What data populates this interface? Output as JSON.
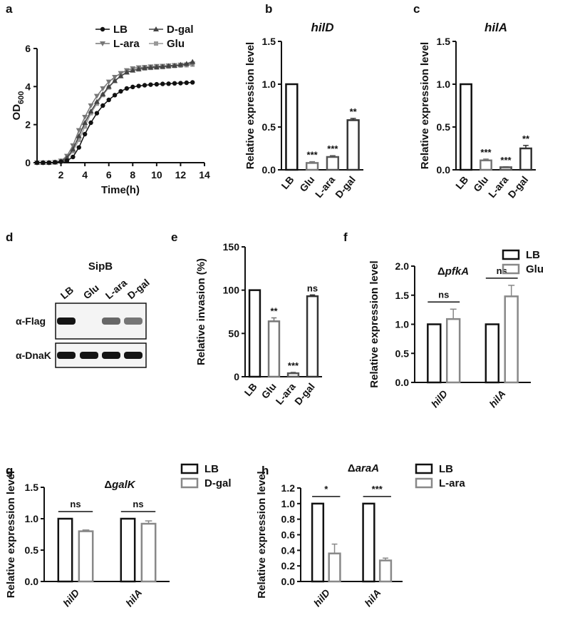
{
  "chart_data": [
    {
      "panel": "a",
      "type": "line",
      "xlabel": "Time(h)",
      "ylabel": "OD",
      "ylabel_sub": "600",
      "xlim": [
        0,
        14
      ],
      "ylim": [
        0,
        6
      ],
      "xticks": [
        2,
        4,
        6,
        8,
        10,
        12,
        14
      ],
      "yticks": [
        0,
        2,
        4,
        6
      ],
      "legend": [
        "LB",
        "D-gal",
        "L-ara",
        "Glu"
      ],
      "legend_position": "top",
      "series": [
        {
          "name": "LB",
          "marker": "circle",
          "color": "#111111",
          "x": [
            0,
            0.5,
            1,
            1.5,
            2,
            2.5,
            3,
            3.5,
            4,
            4.5,
            5,
            5.5,
            6,
            6.5,
            7,
            7.5,
            8,
            8.5,
            9,
            9.5,
            10,
            10.5,
            11,
            11.5,
            12,
            12.5,
            13
          ],
          "y": [
            0,
            0,
            0,
            0.02,
            0.05,
            0.1,
            0.3,
            0.8,
            1.5,
            2.1,
            2.6,
            3.0,
            3.3,
            3.55,
            3.75,
            3.9,
            3.98,
            4.03,
            4.07,
            4.1,
            4.12,
            4.14,
            4.15,
            4.17,
            4.18,
            4.2,
            4.22
          ]
        },
        {
          "name": "D-gal",
          "marker": "triangle",
          "color": "#444444",
          "x": [
            0,
            0.5,
            1,
            1.5,
            2,
            2.5,
            3,
            3.5,
            4,
            4.5,
            5,
            5.5,
            6,
            6.5,
            7,
            7.5,
            8,
            8.5,
            9,
            9.5,
            10,
            10.5,
            11,
            11.5,
            12,
            12.5,
            13
          ],
          "y": [
            0,
            0,
            0,
            0.02,
            0.08,
            0.25,
            0.7,
            1.4,
            2.1,
            2.7,
            3.2,
            3.6,
            4.0,
            4.3,
            4.55,
            4.75,
            4.85,
            4.92,
            4.98,
            5.0,
            5.02,
            5.05,
            5.08,
            5.1,
            5.15,
            5.2,
            5.3
          ]
        },
        {
          "name": "L-ara",
          "marker": "triangle-down",
          "color": "#777777",
          "x": [
            0,
            0.5,
            1,
            1.5,
            2,
            2.5,
            3,
            3.5,
            4,
            4.5,
            5,
            5.5,
            6,
            6.5,
            7,
            7.5,
            8,
            8.5,
            9,
            9.5,
            10,
            10.5,
            11,
            11.5,
            12,
            12.5,
            13
          ],
          "y": [
            0,
            0,
            0,
            0.03,
            0.1,
            0.35,
            0.9,
            1.7,
            2.4,
            3.0,
            3.5,
            3.9,
            4.25,
            4.5,
            4.7,
            4.85,
            4.95,
            5.0,
            5.02,
            5.05,
            5.07,
            5.08,
            5.1,
            5.12,
            5.14,
            5.15,
            5.2
          ]
        },
        {
          "name": "Glu",
          "marker": "square",
          "color": "#999999",
          "x": [
            0,
            0.5,
            1,
            1.5,
            2,
            2.5,
            3,
            3.5,
            4,
            4.5,
            5,
            5.5,
            6,
            6.5,
            7,
            7.5,
            8,
            8.5,
            9,
            9.5,
            10,
            10.5,
            11,
            11.5,
            12,
            12.5,
            13
          ],
          "y": [
            0,
            0,
            0,
            0.02,
            0.07,
            0.22,
            0.6,
            1.2,
            1.9,
            2.6,
            3.1,
            3.55,
            3.95,
            4.3,
            4.55,
            4.75,
            4.85,
            4.9,
            4.95,
            4.98,
            5.0,
            5.02,
            5.05,
            5.08,
            5.1,
            5.12,
            5.15
          ]
        }
      ]
    },
    {
      "panel": "b",
      "type": "bar",
      "title": "hilD",
      "ylabel": "Relative expression level",
      "ylim": [
        0,
        1.5
      ],
      "yticks": [
        "0.0",
        "0.5",
        "1.0",
        "1.5"
      ],
      "categories": [
        "LB",
        "Glu",
        "L-ara",
        "D-gal"
      ],
      "values": [
        1.0,
        0.08,
        0.15,
        0.58
      ],
      "errors": [
        0,
        0.015,
        0.015,
        0.02
      ],
      "significance": [
        "",
        "***",
        "***",
        "**"
      ],
      "colors": [
        "#111111",
        "#777777",
        "#555555",
        "#333333"
      ]
    },
    {
      "panel": "c",
      "type": "bar",
      "title": "hilA",
      "ylabel": "Relative expression level",
      "ylim": [
        0,
        1.5
      ],
      "yticks": [
        "0.0",
        "0.5",
        "1.0",
        "1.5"
      ],
      "categories": [
        "LB",
        "Glu",
        "L-ara",
        "D-gal"
      ],
      "values": [
        1.0,
        0.11,
        0.03,
        0.25
      ],
      "errors": [
        0,
        0.015,
        0.005,
        0.035
      ],
      "significance": [
        "",
        "***",
        "***",
        "**"
      ],
      "colors": [
        "#111111",
        "#777777",
        "#555555",
        "#333333"
      ]
    },
    {
      "panel": "e",
      "type": "bar",
      "ylabel": "Relative invasion (%)",
      "ylim": [
        0,
        150
      ],
      "yticks": [
        "0",
        "50",
        "100",
        "150"
      ],
      "categories": [
        "LB",
        "Glu",
        "L-ara",
        "D-gal"
      ],
      "values": [
        100,
        64,
        4,
        93
      ],
      "errors": [
        0,
        4,
        1,
        1.5
      ],
      "significance": [
        "",
        "**",
        "***",
        "ns"
      ],
      "colors": [
        "#111111",
        "#777777",
        "#555555",
        "#333333"
      ]
    },
    {
      "panel": "f",
      "type": "bar",
      "title": "Δ",
      "title_italic": "pfkA",
      "ylabel": "Relative expression level",
      "ylim": [
        0,
        2.0
      ],
      "yticks": [
        "0.0",
        "0.5",
        "1.0",
        "1.5",
        "2.0"
      ],
      "categories": [
        "hilD",
        "hilA"
      ],
      "series": [
        {
          "name": "LB",
          "color": "#111111",
          "values": [
            1.0,
            1.0
          ],
          "errors": [
            0,
            0
          ]
        },
        {
          "name": "Glu",
          "color": "#888888",
          "values": [
            1.09,
            1.48
          ],
          "errors": [
            0.17,
            0.19
          ]
        }
      ],
      "significance": [
        "ns",
        "ns"
      ],
      "legend_position": "top-right"
    },
    {
      "panel": "g",
      "type": "bar",
      "title": "Δ",
      "title_italic": "galK",
      "ylabel": "Relative expression level",
      "ylim": [
        0,
        1.5
      ],
      "yticks": [
        "0.0",
        "0.5",
        "1.0",
        "1.5"
      ],
      "categories": [
        "hilD",
        "hilA"
      ],
      "series": [
        {
          "name": "LB",
          "color": "#111111",
          "values": [
            1.0,
            1.0
          ],
          "errors": [
            0,
            0
          ]
        },
        {
          "name": "D-gal",
          "color": "#888888",
          "values": [
            0.8,
            0.92
          ],
          "errors": [
            0.02,
            0.045
          ]
        }
      ],
      "significance": [
        "ns",
        "ns"
      ],
      "legend_position": "top-right"
    },
    {
      "panel": "h",
      "type": "bar",
      "title": "Δ",
      "title_italic": "araA",
      "ylabel": "Relative expression level",
      "ylim": [
        0,
        1.2
      ],
      "yticks": [
        "0.0",
        "0.2",
        "0.4",
        "0.6",
        "0.8",
        "1.0",
        "1.2"
      ],
      "categories": [
        "hilD",
        "hilA"
      ],
      "series": [
        {
          "name": "LB",
          "color": "#111111",
          "values": [
            1.0,
            1.0
          ],
          "errors": [
            0,
            0
          ]
        },
        {
          "name": "L-ara",
          "color": "#888888",
          "values": [
            0.36,
            0.27
          ],
          "errors": [
            0.12,
            0.03
          ]
        }
      ],
      "significance": [
        "*",
        "***"
      ],
      "legend_position": "top-right"
    }
  ],
  "blot": {
    "panel": "d",
    "title": "SipB",
    "lanes": [
      "LB",
      "Glu",
      "L-ara",
      "D-gal"
    ],
    "rows": [
      {
        "label": "α-Flag",
        "intensities": [
          1.0,
          0.0,
          0.45,
          0.35
        ]
      },
      {
        "label": "α-DnaK",
        "intensities": [
          1.0,
          1.0,
          1.0,
          1.0
        ]
      }
    ]
  }
}
